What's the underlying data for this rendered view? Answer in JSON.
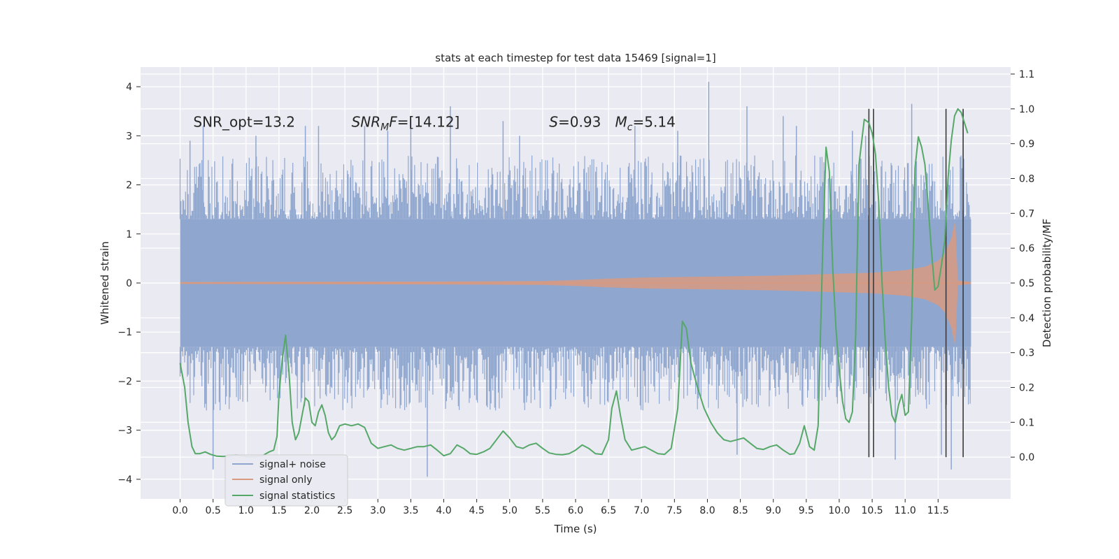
{
  "chart_data": {
    "type": "line",
    "title": "stats at each timestep for test data 15469 [signal=1]",
    "xlabel": "Time (s)",
    "ylabel": "Whitened strain",
    "y2label": "Detection probability/MF",
    "xlim": [
      -0.6,
      12.6
    ],
    "ylim": [
      -4.4,
      4.4
    ],
    "y2lim": [
      -0.12,
      1.12
    ],
    "xticks": [
      0.0,
      0.5,
      1.0,
      1.5,
      2.0,
      2.5,
      3.0,
      3.5,
      4.0,
      4.5,
      5.0,
      5.5,
      6.0,
      6.5,
      7.0,
      7.5,
      8.0,
      8.5,
      9.0,
      9.5,
      10.0,
      10.5,
      11.0,
      11.5
    ],
    "xtick_labels": [
      "0.0",
      "0.5",
      "1.0",
      "1.5",
      "2.0",
      "2.5",
      "3.0",
      "3.5",
      "4.0",
      "4.5",
      "5.0",
      "5.5",
      "6.0",
      "6.5",
      "7.0",
      "7.5",
      "8.0",
      "8.5",
      "9.0",
      "9.5",
      "10.0",
      "10.5",
      "11.0",
      "11.5"
    ],
    "yticks": [
      -4,
      -3,
      -2,
      -1,
      0,
      1,
      2,
      3,
      4
    ],
    "ytick_labels": [
      "−4",
      "−3",
      "−2",
      "−1",
      "0",
      "1",
      "2",
      "3",
      "4"
    ],
    "y2ticks": [
      0.0,
      0.1,
      0.2,
      0.3,
      0.4,
      0.5,
      0.6,
      0.7,
      0.8,
      0.9,
      1.0,
      1.1
    ],
    "y2tick_labels": [
      "0.0",
      "0.1",
      "0.2",
      "0.3",
      "0.4",
      "0.5",
      "0.6",
      "0.7",
      "0.8",
      "0.9",
      "1.0",
      "1.1"
    ],
    "grid": true,
    "legend_position": "bottom-left",
    "annotations": [
      {
        "text": "SNR_opt=13.2",
        "x": 0.2,
        "y": 3.3
      },
      {
        "text": "SNR_MF=[14.12]",
        "main": "SNR",
        "sub": "M",
        "tail": "F=[14.12]",
        "x": 2.6,
        "y": 3.3
      },
      {
        "text": "S=0.93",
        "main": "S",
        "tail": "=0.93",
        "x": 5.6,
        "y": 3.3
      },
      {
        "text": "M_c=5.14",
        "main": "M",
        "sub": "c",
        "tail": "=5.14",
        "x": 6.6,
        "y": 3.3
      }
    ],
    "vlines_y2": [
      {
        "x": 10.45,
        "ymin": 0.0,
        "ymax": 1.0
      },
      {
        "x": 10.52,
        "ymin": 0.0,
        "ymax": 1.0
      },
      {
        "x": 11.62,
        "ymin": 0.0,
        "ymax": 1.0
      },
      {
        "x": 11.88,
        "ymin": 0.0,
        "ymax": 1.0
      }
    ],
    "series": [
      {
        "name": "signal+ noise",
        "axis": "left",
        "style": "noise-fill",
        "color": "#8fa6cf",
        "t_range": [
          0.0,
          12.0
        ],
        "base_low": -1.3,
        "base_high": 1.3,
        "typical_peak": 2.3,
        "spikes": [
          {
            "x": 0.15,
            "y": 2.9
          },
          {
            "x": 0.35,
            "y": 3.2
          },
          {
            "x": 0.5,
            "y": -3.8
          },
          {
            "x": 1.15,
            "y": 3.0
          },
          {
            "x": 1.9,
            "y": 3.2
          },
          {
            "x": 2.1,
            "y": 3.2
          },
          {
            "x": 2.8,
            "y": 3.2
          },
          {
            "x": 3.15,
            "y": 3.1
          },
          {
            "x": 3.5,
            "y": 3.3
          },
          {
            "x": 3.75,
            "y": -3.95
          },
          {
            "x": 4.1,
            "y": 3.6
          },
          {
            "x": 4.9,
            "y": 3.3
          },
          {
            "x": 5.15,
            "y": 3.0
          },
          {
            "x": 6.9,
            "y": 3.2
          },
          {
            "x": 7.55,
            "y": 3.1
          },
          {
            "x": 8.02,
            "y": 4.1
          },
          {
            "x": 8.6,
            "y": 3.6
          },
          {
            "x": 9.15,
            "y": 3.4
          },
          {
            "x": 9.35,
            "y": 3.2
          },
          {
            "x": 10.2,
            "y": 3.1
          },
          {
            "x": 10.4,
            "y": 3.0
          },
          {
            "x": 11.1,
            "y": 3.65
          },
          {
            "x": 11.55,
            "y": -3.5
          },
          {
            "x": 11.7,
            "y": -3.8
          },
          {
            "x": 10.85,
            "y": -3.6
          },
          {
            "x": 8.45,
            "y": -3.5
          }
        ]
      },
      {
        "name": "signal only",
        "axis": "left",
        "style": "chirp-envelope",
        "color": "#d99a80",
        "t_range": [
          0.0,
          12.0
        ],
        "envelope": {
          "t": [
            0.0,
            4.0,
            5.5,
            6.0,
            6.5,
            7.0,
            8.0,
            9.0,
            10.0,
            10.5,
            11.0,
            11.3,
            11.5,
            11.6,
            11.7,
            11.76,
            11.8,
            12.0
          ],
          "amp": [
            0.02,
            0.03,
            0.04,
            0.06,
            0.09,
            0.11,
            0.13,
            0.15,
            0.19,
            0.21,
            0.26,
            0.33,
            0.45,
            0.6,
            0.9,
            1.3,
            0.05,
            0.02
          ]
        }
      },
      {
        "name": "signal statistics",
        "axis": "right",
        "style": "line",
        "color": "#55a868",
        "x": [
          0.0,
          0.07,
          0.12,
          0.18,
          0.23,
          0.3,
          0.38,
          0.46,
          0.55,
          0.65,
          0.75,
          0.85,
          0.95,
          1.05,
          1.15,
          1.25,
          1.35,
          1.42,
          1.47,
          1.5,
          1.55,
          1.6,
          1.65,
          1.7,
          1.75,
          1.8,
          1.85,
          1.9,
          1.95,
          2.0,
          2.05,
          2.1,
          2.15,
          2.2,
          2.25,
          2.3,
          2.35,
          2.42,
          2.5,
          2.6,
          2.7,
          2.8,
          2.9,
          3.0,
          3.1,
          3.2,
          3.3,
          3.4,
          3.5,
          3.6,
          3.7,
          3.8,
          3.9,
          4.0,
          4.1,
          4.2,
          4.3,
          4.4,
          4.5,
          4.6,
          4.7,
          4.8,
          4.9,
          5.0,
          5.1,
          5.2,
          5.3,
          5.4,
          5.5,
          5.6,
          5.7,
          5.8,
          5.9,
          6.0,
          6.1,
          6.2,
          6.3,
          6.4,
          6.5,
          6.55,
          6.62,
          6.68,
          6.75,
          6.85,
          6.95,
          7.05,
          7.15,
          7.25,
          7.35,
          7.45,
          7.55,
          7.62,
          7.68,
          7.75,
          7.85,
          7.95,
          8.05,
          8.15,
          8.25,
          8.35,
          8.45,
          8.55,
          8.65,
          8.75,
          8.85,
          8.95,
          9.05,
          9.15,
          9.25,
          9.32,
          9.4,
          9.47,
          9.55,
          9.62,
          9.68,
          9.75,
          9.8,
          9.85,
          9.9,
          9.95,
          10.0,
          10.05,
          10.1,
          10.15,
          10.2,
          10.25,
          10.3,
          10.38,
          10.45,
          10.5,
          10.55,
          10.6,
          10.65,
          10.7,
          10.75,
          10.8,
          10.85,
          10.9,
          10.95,
          11.0,
          11.05,
          11.1,
          11.15,
          11.2,
          11.25,
          11.3,
          11.35,
          11.4,
          11.45,
          11.5,
          11.55,
          11.6,
          11.65,
          11.7,
          11.75,
          11.8,
          11.85,
          11.9,
          11.95
        ],
        "y": [
          0.27,
          0.2,
          0.1,
          0.03,
          0.01,
          0.01,
          0.015,
          0.008,
          0.003,
          0.002,
          0.003,
          0.006,
          0.003,
          0.001,
          0.002,
          0.004,
          0.015,
          0.02,
          0.06,
          0.18,
          0.28,
          0.35,
          0.25,
          0.1,
          0.05,
          0.07,
          0.12,
          0.17,
          0.16,
          0.1,
          0.09,
          0.13,
          0.15,
          0.12,
          0.07,
          0.05,
          0.06,
          0.09,
          0.095,
          0.09,
          0.095,
          0.085,
          0.04,
          0.025,
          0.03,
          0.035,
          0.025,
          0.02,
          0.025,
          0.03,
          0.03,
          0.035,
          0.02,
          0.004,
          0.01,
          0.035,
          0.025,
          0.01,
          0.008,
          0.015,
          0.025,
          0.05,
          0.075,
          0.055,
          0.03,
          0.025,
          0.035,
          0.04,
          0.025,
          0.012,
          0.008,
          0.007,
          0.01,
          0.02,
          0.035,
          0.025,
          0.01,
          0.008,
          0.05,
          0.14,
          0.19,
          0.12,
          0.05,
          0.02,
          0.025,
          0.03,
          0.02,
          0.01,
          0.008,
          0.025,
          0.14,
          0.39,
          0.37,
          0.27,
          0.2,
          0.14,
          0.1,
          0.07,
          0.05,
          0.045,
          0.05,
          0.055,
          0.04,
          0.025,
          0.022,
          0.03,
          0.035,
          0.02,
          0.008,
          0.01,
          0.04,
          0.09,
          0.03,
          0.02,
          0.09,
          0.6,
          0.89,
          0.82,
          0.55,
          0.37,
          0.25,
          0.16,
          0.11,
          0.1,
          0.13,
          0.35,
          0.84,
          0.97,
          0.96,
          0.93,
          0.87,
          0.73,
          0.5,
          0.33,
          0.2,
          0.12,
          0.1,
          0.15,
          0.18,
          0.12,
          0.13,
          0.4,
          0.83,
          0.92,
          0.89,
          0.84,
          0.72,
          0.59,
          0.48,
          0.49,
          0.55,
          0.62,
          0.8,
          0.91,
          0.98,
          1.0,
          0.99,
          0.96,
          0.93
        ]
      }
    ]
  }
}
